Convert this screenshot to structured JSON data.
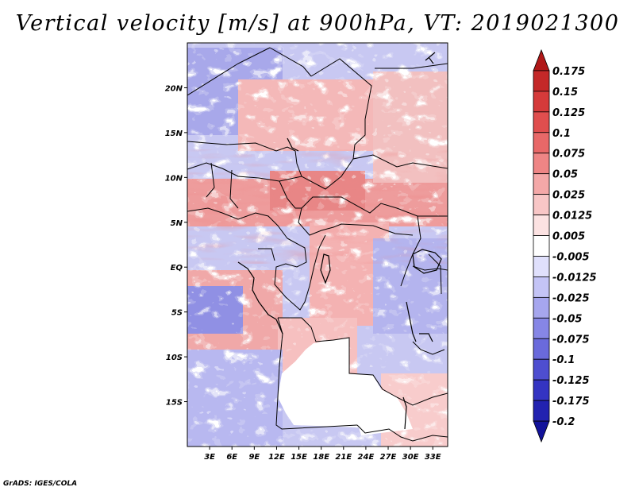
{
  "map": {
    "title": "Vertical velocity [m/s] at 900hPa, VT: 2019021300",
    "credit": "GrADS: IGES/COLA",
    "lat_range": [
      -20,
      25
    ],
    "lon_range": [
      0,
      35
    ],
    "lat_ticks": [
      {
        "value": 20,
        "label": "20N"
      },
      {
        "value": 15,
        "label": "15N"
      },
      {
        "value": 10,
        "label": "10N"
      },
      {
        "value": 5,
        "label": "5N"
      },
      {
        "value": 0,
        "label": "EQ"
      },
      {
        "value": -5,
        "label": "5S"
      },
      {
        "value": -10,
        "label": "10S"
      },
      {
        "value": -15,
        "label": "15S"
      }
    ],
    "lon_ticks": [
      {
        "value": 3,
        "label": "3E"
      },
      {
        "value": 6,
        "label": "6E"
      },
      {
        "value": 9,
        "label": "9E"
      },
      {
        "value": 12,
        "label": "12E"
      },
      {
        "value": 15,
        "label": "15E"
      },
      {
        "value": 18,
        "label": "18E"
      },
      {
        "value": 21,
        "label": "21E"
      },
      {
        "value": 24,
        "label": "24E"
      },
      {
        "value": 27,
        "label": "27E"
      },
      {
        "value": 30,
        "label": "30E"
      },
      {
        "value": 33,
        "label": "33E"
      }
    ],
    "colorbar": {
      "labels": [
        "0.175",
        "0.15",
        "0.125",
        "0.1",
        "0.075",
        "0.05",
        "0.025",
        "0.0125",
        "0.005",
        "-0.005",
        "-0.0125",
        "-0.025",
        "-0.05",
        "-0.075",
        "-0.1",
        "-0.125",
        "-0.175",
        "-0.2"
      ],
      "colors": [
        "#b01818",
        "#c42828",
        "#d53a3a",
        "#e04e4e",
        "#e86868",
        "#ee8585",
        "#f4a8a8",
        "#f8c6c6",
        "#fce2e2",
        "#ffffff",
        "#e0e0fc",
        "#c4c4f6",
        "#a6a6ee",
        "#8686e6",
        "#6a6adc",
        "#4e4ed0",
        "#3434c2",
        "#2222b0",
        "#12129a"
      ]
    }
  }
}
